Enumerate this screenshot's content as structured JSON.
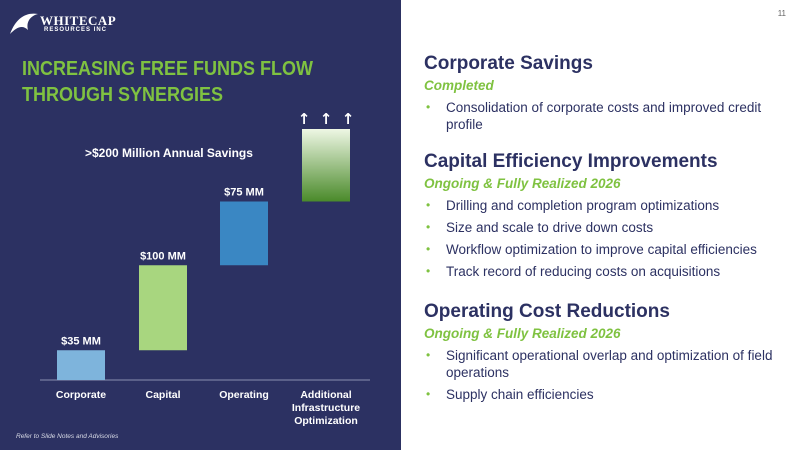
{
  "page_number": "11",
  "logo": {
    "word": "WHITECAP",
    "sub": "RESOURCES INC"
  },
  "slide_title": "INCREASING FREE FUNDS FLOW THROUGH SYNERGIES",
  "annotation": ">$200 Million Annual Savings",
  "footnote": "Refer to Slide Notes and Advisories",
  "colors": {
    "navy": "#2c3162",
    "green_accent": "#7fc241",
    "bar_corporate": "#7eb4dc",
    "bar_capital": "#a8d67f",
    "bar_operating": "#3a87c3",
    "bar_additional_top": "#eef7e4",
    "bar_additional_bottom": "#4a8a2a"
  },
  "chart_data": {
    "type": "bar",
    "subtype": "waterfall",
    "categories": [
      "Corporate",
      "Capital",
      "Operating",
      "Additional Infrastructure Optimization"
    ],
    "values": [
      35,
      100,
      75,
      null
    ],
    "value_labels": [
      "$35 MM",
      "$100 MM",
      "$75 MM",
      ""
    ],
    "additional_open_ended": true,
    "arrows": [
      "↑",
      "↑",
      "↑"
    ],
    "units": "MM",
    "title": "",
    "xlabel": "",
    "ylabel": ""
  },
  "sections": [
    {
      "title": "Corporate Savings",
      "status": "Completed",
      "bullets": [
        "Consolidation of corporate costs and improved credit profile"
      ]
    },
    {
      "title": "Capital Efficiency Improvements",
      "status": "Ongoing & Fully Realized 2026",
      "bullets": [
        "Drilling and completion program optimizations",
        "Size and scale to drive down costs",
        "Workflow optimization to improve capital efficiencies",
        "Track record of reducing costs on acquisitions"
      ]
    },
    {
      "title": "Operating Cost Reductions",
      "status": "Ongoing & Fully Realized 2026",
      "bullets": [
        "Significant operational overlap and optimization of field operations",
        "Supply chain efficiencies"
      ]
    }
  ]
}
